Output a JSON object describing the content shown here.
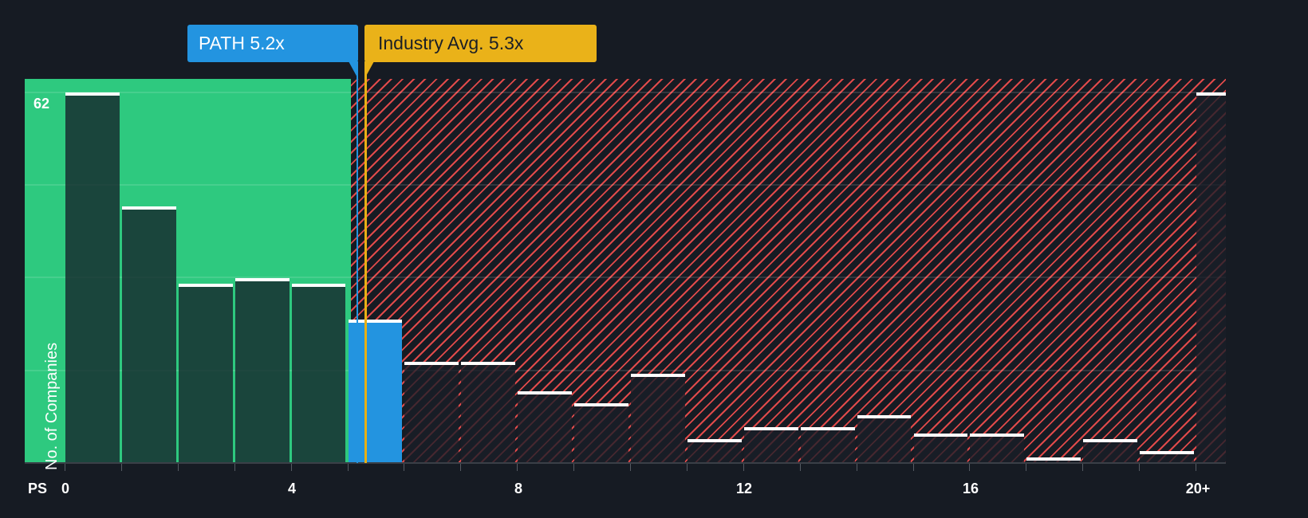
{
  "callouts": {
    "company": {
      "label": "PATH 5.2x",
      "color": "#2394e0"
    },
    "industry": {
      "label": "Industry Avg. 5.3x",
      "color": "#eab219"
    }
  },
  "axis": {
    "y_label": "No. of Companies",
    "y_max_label": "62",
    "x_prefix": "PS",
    "x_tick_labels": [
      "0",
      "4",
      "8",
      "12",
      "16",
      "20+"
    ]
  },
  "colors": {
    "background": "#161b23",
    "fair_zone": "#2ec97f",
    "overvalued_hatch": "#e04a4a",
    "highlight_bar": "#2394e0",
    "industry_line": "#e8b015"
  },
  "chart_data": {
    "type": "bar",
    "title": "",
    "xlabel": "PS",
    "ylabel": "No. of Companies",
    "categories": [
      "0-1",
      "1-2",
      "2-3",
      "3-4",
      "4-5",
      "5-6",
      "6-7",
      "7-8",
      "8-9",
      "9-10",
      "10-11",
      "11-12",
      "12-13",
      "13-14",
      "14-15",
      "15-16",
      "16-17",
      "17-18",
      "18-19",
      "19-20",
      "20+"
    ],
    "values": [
      62,
      43,
      30,
      31,
      30,
      24,
      17,
      17,
      12,
      10,
      15,
      4,
      6,
      6,
      8,
      5,
      5,
      1,
      4,
      2,
      62
    ],
    "highlight_index": 5,
    "x_ticks": [
      0,
      4,
      8,
      12,
      16,
      20
    ],
    "ylim": [
      0,
      62
    ],
    "grid": true,
    "annotations": [
      {
        "label": "PATH 5.2x",
        "x": 5.2
      },
      {
        "label": "Industry Avg. 5.3x",
        "x": 5.3
      }
    ],
    "zones": [
      {
        "name": "below-industry",
        "from": 0,
        "to": 5.2,
        "style": "green"
      },
      {
        "name": "above-company",
        "from": 5.2,
        "to": 21,
        "style": "red-hatch"
      }
    ]
  }
}
